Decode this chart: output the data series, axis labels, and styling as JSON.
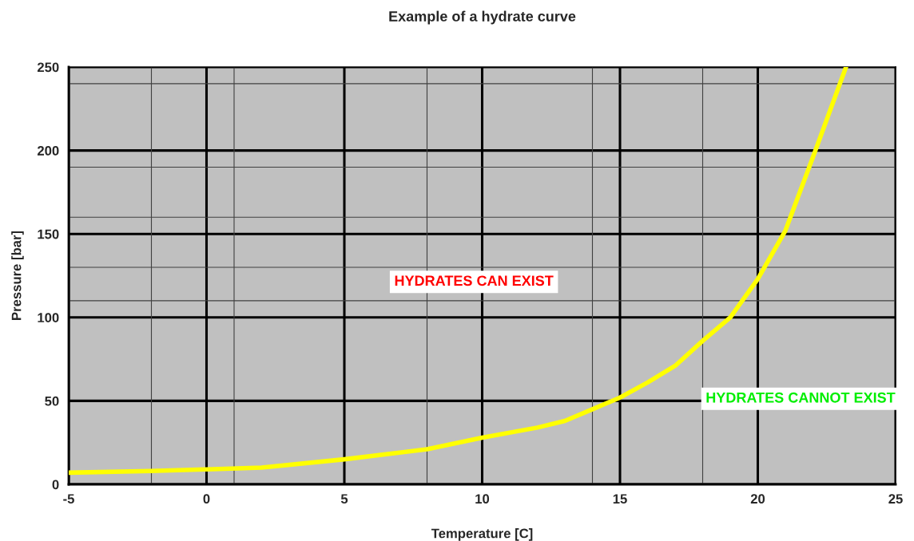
{
  "chart_data": {
    "type": "line",
    "title": "Example of a hydrate curve",
    "xlabel": "Temperature [C]",
    "ylabel": "Pressure [bar]",
    "x": [
      -5,
      -2,
      0,
      2,
      5,
      8,
      10,
      12,
      13,
      14,
      15,
      16,
      17,
      18,
      19,
      20,
      21,
      22,
      23.2
    ],
    "series": [
      {
        "color": "#ffff00",
        "values": [
          7,
          8,
          9,
          10,
          15,
          21,
          28,
          34,
          38,
          45,
          52,
          61,
          71,
          86,
          100,
          123,
          152,
          196,
          250
        ]
      }
    ],
    "xlim": [
      -5,
      25
    ],
    "xticks": [
      -5,
      0,
      5,
      10,
      15,
      20,
      25
    ],
    "ylim": [
      0,
      250
    ],
    "yticks": [
      0,
      50,
      100,
      150,
      200,
      250
    ],
    "grid": true,
    "marker": "none",
    "line_style": "solid",
    "ref_lines": [
      {
        "axis": "x",
        "value": -2,
        "color": "#404040"
      },
      {
        "axis": "x",
        "value": 1,
        "color": "#404040"
      },
      {
        "axis": "x",
        "value": 8,
        "color": "#404040"
      },
      {
        "axis": "x",
        "value": 14,
        "color": "#404040"
      },
      {
        "axis": "x",
        "value": 18,
        "color": "#404040"
      },
      {
        "axis": "y",
        "value": 110,
        "color": "#404040"
      },
      {
        "axis": "y",
        "value": 130,
        "color": "#404040"
      },
      {
        "axis": "y",
        "value": 160,
        "color": "#404040"
      },
      {
        "axis": "y",
        "value": 190,
        "color": "#404040"
      },
      {
        "axis": "y",
        "value": 240,
        "color": "#404040"
      }
    ],
    "annotations": [
      "HYDRATES CAN EXIST",
      "HYDRATES CANNOT EXIST"
    ]
  }
}
